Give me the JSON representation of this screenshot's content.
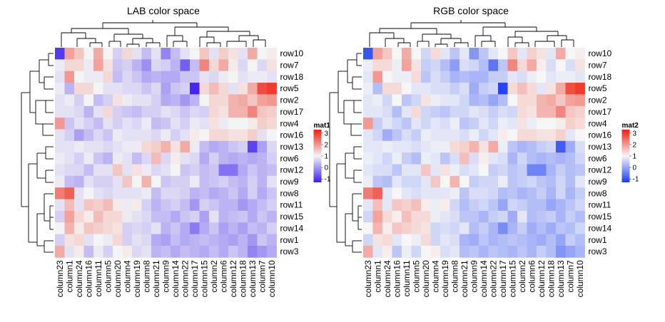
{
  "chart_data": [
    {
      "type": "heatmap",
      "title": "LAB color space",
      "color_space": "LAB",
      "legend": {
        "name": "mat1",
        "ticks": [
          "3",
          "2",
          "1",
          "0",
          "-1"
        ],
        "range": [
          -1.3,
          3.3
        ],
        "colors": {
          "low": "#3b1ef0",
          "mid": "#f4f4f4",
          "high": "#ef1f10"
        }
      },
      "rows": [
        "row10",
        "row7",
        "row18",
        "row5",
        "row2",
        "row17",
        "row4",
        "row16",
        "row13",
        "row6",
        "row12",
        "row9",
        "row8",
        "row11",
        "row15",
        "row14",
        "row1",
        "row3"
      ],
      "columns": [
        "column23",
        "column1",
        "column24",
        "column16",
        "column11",
        "column5",
        "column20",
        "column4",
        "column19",
        "column8",
        "column21",
        "column9",
        "column14",
        "column22",
        "column17",
        "column15",
        "column2",
        "column6",
        "column12",
        "column18",
        "column13",
        "column7",
        "column10"
      ]
    },
    {
      "type": "heatmap",
      "title": "RGB color space",
      "color_space": "RGB",
      "legend": {
        "name": "mat2",
        "ticks": [
          "3",
          "2",
          "1",
          "0",
          "-1"
        ],
        "range": [
          -1.3,
          3.3
        ],
        "colors": {
          "low": "#1a3cf5",
          "mid": "#f6f6f6",
          "high": "#ef1f10"
        }
      },
      "rows": [
        "row10",
        "row7",
        "row18",
        "row5",
        "row2",
        "row17",
        "row4",
        "row16",
        "row13",
        "row6",
        "row12",
        "row9",
        "row8",
        "row11",
        "row15",
        "row14",
        "row1",
        "row3"
      ],
      "columns": [
        "column23",
        "column1",
        "column24",
        "column16",
        "column11",
        "column5",
        "column20",
        "column4",
        "column19",
        "column8",
        "column21",
        "column9",
        "column14",
        "column22",
        "column17",
        "column15",
        "column2",
        "column6",
        "column12",
        "column18",
        "column13",
        "column7",
        "column10"
      ]
    }
  ],
  "matrix": [
    [
      -1.0,
      1.9,
      1.5,
      1.0,
      1.8,
      1.0,
      0.6,
      1.3,
      0.8,
      0.4,
      0.8,
      -0.2,
      0.4,
      0.8,
      1.0,
      1.5,
      0.8,
      1.4,
      1.2,
      0.8,
      1.8,
      1.0,
      1.1
    ],
    [
      0.9,
      1.3,
      1.3,
      0.9,
      1.9,
      1.2,
      0.5,
      0.6,
      0.3,
      -0.1,
      0.7,
      0.6,
      0.3,
      -0.6,
      0.4,
      2.2,
      1.3,
      1.8,
      1.1,
      0.7,
      1.0,
      0.7,
      1.2
    ],
    [
      0.8,
      2.0,
      1.0,
      0.9,
      0.9,
      1.3,
      0.4,
      0.7,
      0.5,
      0.2,
      0.3,
      0.2,
      0.2,
      0.5,
      0.5,
      0.8,
      0.7,
      0.9,
      1.0,
      0.8,
      0.9,
      0.9,
      0.8
    ],
    [
      0.9,
      0.3,
      1.3,
      1.3,
      1.0,
      0.8,
      0.8,
      0.7,
      0.7,
      0.5,
      0.7,
      0.1,
      0.5,
      0.6,
      -1.2,
      1.3,
      1.6,
      1.3,
      0.8,
      1.2,
      1.8,
      2.8,
      3.0
    ],
    [
      0.8,
      0.9,
      0.6,
      1.0,
      0.4,
      0.6,
      1.2,
      0.9,
      0.8,
      0.8,
      0.6,
      0.2,
      0.3,
      0.0,
      0.3,
      1.0,
      1.3,
      1.3,
      1.7,
      1.8,
      1.5,
      1.9,
      2.0
    ],
    [
      0.8,
      0.8,
      0.7,
      0.3,
      0.8,
      1.3,
      0.6,
      0.5,
      0.4,
      0.6,
      0.6,
      0.8,
      0.7,
      0.5,
      0.7,
      0.6,
      1.3,
      1.2,
      1.7,
      1.7,
      2.2,
      1.5,
      1.4
    ],
    [
      2.0,
      0.5,
      0.8,
      0.6,
      0.4,
      0.8,
      0.6,
      0.8,
      0.7,
      0.9,
      0.4,
      0.5,
      0.8,
      0.6,
      0.9,
      0.8,
      1.2,
      0.9,
      1.0,
      1.0,
      1.1,
      1.4,
      1.3
    ],
    [
      0.8,
      0.6,
      0.1,
      0.4,
      0.7,
      0.5,
      0.9,
      0.8,
      0.8,
      0.8,
      0.7,
      0.9,
      0.6,
      0.8,
      1.1,
      1.0,
      1.3,
      1.3,
      1.2,
      1.2,
      1.4,
      0.8,
      1.0
    ],
    [
      0.8,
      0.8,
      0.9,
      0.8,
      0.8,
      0.7,
      0.8,
      0.9,
      0.9,
      1.3,
      1.4,
      1.7,
      1.2,
      1.8,
      0.9,
      0.4,
      0.2,
      0.3,
      0.5,
      0.6,
      -0.9,
      0.1,
      0.7
    ],
    [
      0.9,
      0.8,
      0.6,
      0.9,
      0.5,
      0.3,
      0.9,
      0.8,
      0.4,
      0.7,
      1.6,
      0.7,
      1.1,
      0.8,
      0.7,
      0.2,
      0.6,
      0.3,
      0.2,
      0.3,
      0.2,
      0.3,
      0.6
    ],
    [
      0.8,
      0.7,
      0.7,
      0.4,
      0.8,
      0.8,
      1.5,
      0.8,
      1.2,
      0.9,
      0.7,
      0.8,
      1.0,
      0.5,
      0.6,
      0.4,
      0.5,
      -0.4,
      -0.4,
      0.2,
      0.5,
      0.3,
      0.4
    ],
    [
      0.9,
      0.4,
      0.3,
      0.8,
      0.6,
      0.6,
      0.8,
      1.5,
      1.0,
      1.7,
      1.0,
      0.5,
      0.6,
      0.6,
      0.9,
      0.4,
      0.5,
      0.6,
      0.4,
      0.3,
      0.6,
      0.3,
      0.8
    ],
    [
      2.3,
      2.6,
      0.8,
      1.0,
      0.8,
      0.7,
      0.8,
      0.8,
      0.8,
      0.9,
      0.4,
      0.7,
      0.7,
      0.6,
      0.3,
      0.4,
      0.2,
      0.3,
      0.5,
      0.2,
      0.6,
      0.2,
      0.5
    ],
    [
      0.8,
      1.6,
      0.8,
      1.5,
      1.4,
      1.6,
      1.1,
      0.9,
      1.1,
      0.6,
      0.3,
      0.5,
      0.6,
      0.4,
      0.0,
      0.6,
      0.5,
      0.3,
      0.3,
      0.0,
      0.2,
      0.4,
      0.6
    ],
    [
      0.6,
      1.9,
      1.3,
      1.1,
      1.6,
      1.3,
      1.3,
      0.9,
      0.8,
      0.7,
      0.4,
      0.4,
      0.2,
      0.5,
      0.6,
      0.1,
      0.8,
      0.3,
      0.4,
      0.5,
      0.2,
      0.5,
      0.3
    ],
    [
      1.0,
      1.7,
      1.1,
      1.5,
      1.4,
      1.3,
      1.2,
      0.6,
      0.7,
      0.6,
      0.8,
      0.3,
      0.5,
      0.2,
      -0.3,
      0.2,
      0.5,
      0.1,
      0.3,
      0.1,
      0.4,
      0.3,
      0.6
    ],
    [
      0.6,
      1.2,
      1.3,
      0.8,
      1.0,
      0.9,
      1.3,
      0.6,
      0.8,
      0.7,
      0.2,
      0.1,
      0.4,
      0.2,
      0.3,
      0.4,
      0.3,
      0.2,
      0.1,
      0.3,
      0.0,
      0.5,
      0.3
    ],
    [
      1.8,
      0.8,
      1.1,
      0.4,
      0.9,
      0.6,
      1.0,
      1.1,
      0.7,
      0.8,
      0.3,
      0.4,
      0.2,
      0.4,
      0.3,
      0.2,
      0.4,
      0.2,
      0.5,
      0.3,
      -0.2,
      0.0,
      0.2
    ]
  ]
}
